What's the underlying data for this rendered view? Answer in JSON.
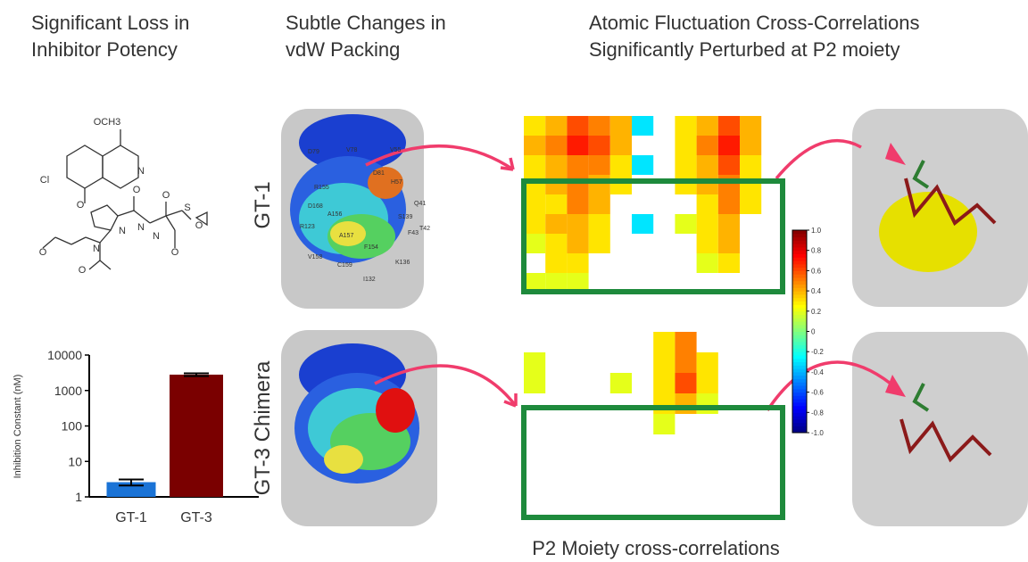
{
  "headings": [
    {
      "lines": [
        "Significant Loss in",
        "Inhibitor Potency"
      ]
    },
    {
      "lines": [
        "Subtle Changes in",
        "vdW Packing"
      ]
    },
    {
      "lines": [
        "Atomic Fluctuation Cross-Correlations",
        "Significantly Perturbed at P2 moiety"
      ]
    }
  ],
  "structure_labels": [
    "OCH3",
    "N",
    "Cl",
    "O",
    "O",
    "N",
    "O",
    "N",
    "O",
    "O",
    "N",
    "O",
    "O",
    "N",
    "S"
  ],
  "row_labels": [
    "GT-1",
    "GT-3 Chimera"
  ],
  "residues": [
    "D79",
    "V78",
    "D81",
    "V55",
    "H57",
    "R155",
    "D168",
    "A156",
    "S139",
    "Q41",
    "R123",
    "A157",
    "F154",
    "F43",
    "T42",
    "V158",
    "C159",
    "K136",
    "I132"
  ],
  "chart_data": {
    "type": "bar",
    "ylabel": "Inhibition Constant (nM)",
    "categories": [
      "GT-1",
      "GT-3"
    ],
    "values": [
      2.6,
      2800
    ],
    "errors": [
      0.5,
      250
    ],
    "colors": [
      "#1a73d6",
      "#7a0000"
    ],
    "log_scale": true,
    "ylim": [
      1,
      10000
    ],
    "yticks": [
      1,
      10,
      100,
      1000,
      10000
    ]
  },
  "heatmaps": [
    {
      "values": [
        [
          0.3,
          0.4,
          0.6,
          0.5,
          0.4,
          -0.3,
          null,
          0.3,
          0.4,
          0.6,
          0.4,
          null
        ],
        [
          0.4,
          0.5,
          0.7,
          0.6,
          0.4,
          null,
          null,
          0.3,
          0.5,
          0.7,
          0.4,
          null
        ],
        [
          0.3,
          0.4,
          0.5,
          0.5,
          0.3,
          -0.3,
          null,
          0.3,
          0.4,
          0.6,
          0.3,
          null
        ],
        [
          0.3,
          0.4,
          0.5,
          0.4,
          0.3,
          null,
          null,
          0.3,
          0.4,
          0.5,
          0.3,
          null
        ],
        [
          0.3,
          0.3,
          0.5,
          0.4,
          null,
          null,
          null,
          null,
          0.3,
          0.5,
          0.3,
          null
        ],
        [
          0.3,
          0.4,
          0.4,
          0.3,
          null,
          -0.3,
          null,
          0.2,
          0.3,
          0.4,
          null,
          null
        ],
        [
          0.2,
          0.3,
          0.4,
          0.3,
          null,
          null,
          null,
          null,
          0.3,
          0.4,
          null,
          null
        ],
        [
          null,
          0.3,
          0.3,
          null,
          null,
          null,
          null,
          null,
          0.2,
          0.3,
          null,
          null
        ],
        [
          0.2,
          0.2,
          0.2,
          null,
          null,
          null,
          null,
          null,
          null,
          null,
          null,
          null
        ]
      ]
    },
    {
      "values": [
        [
          null,
          null,
          null,
          null,
          null,
          null,
          0.3,
          0.5,
          null,
          null,
          null,
          null
        ],
        [
          0.2,
          null,
          null,
          null,
          null,
          null,
          0.3,
          0.5,
          0.3,
          null,
          null,
          null
        ],
        [
          0.2,
          null,
          null,
          null,
          0.2,
          null,
          0.3,
          0.6,
          0.3,
          null,
          null,
          null
        ],
        [
          null,
          null,
          null,
          null,
          null,
          null,
          0.3,
          0.4,
          0.2,
          null,
          null,
          null
        ],
        [
          null,
          null,
          null,
          null,
          null,
          null,
          0.2,
          null,
          null,
          null,
          null,
          null
        ],
        [
          null,
          null,
          null,
          null,
          null,
          null,
          null,
          null,
          null,
          null,
          null,
          null
        ],
        [
          null,
          null,
          null,
          null,
          null,
          null,
          null,
          null,
          null,
          null,
          null,
          null
        ],
        [
          null,
          null,
          null,
          null,
          null,
          null,
          null,
          null,
          null,
          null,
          null,
          null
        ],
        [
          null,
          null,
          null,
          null,
          null,
          null,
          null,
          null,
          null,
          null,
          null,
          null
        ]
      ]
    }
  ],
  "colorbar": {
    "lim": [
      -1,
      1
    ],
    "ticks": [
      {
        "value": 1,
        "label": "1.0"
      },
      {
        "value": 0.8,
        "label": "0.8"
      },
      {
        "value": 0.6,
        "label": "0.6"
      },
      {
        "value": 0.4,
        "label": "0.4"
      },
      {
        "value": 0.2,
        "label": "0.2"
      },
      0,
      {
        "value": -0.2,
        "label": "-0.2"
      },
      {
        "value": -0.4,
        "label": "-0.4"
      },
      {
        "value": -0.6,
        "label": "-0.6"
      },
      {
        "value": -0.8,
        "label": "-0.8"
      },
      {
        "value": -1,
        "label": "-1.0"
      }
    ]
  },
  "caption": "P2 Moiety cross-correlations"
}
